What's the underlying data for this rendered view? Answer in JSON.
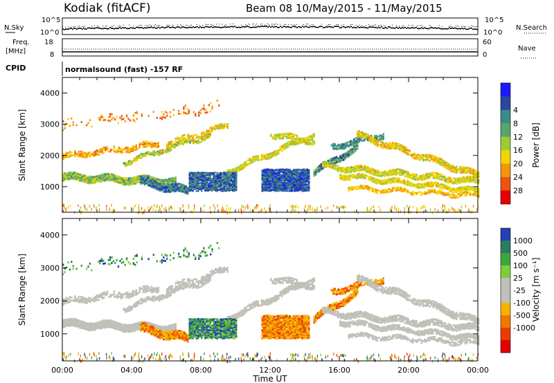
{
  "header": {
    "station": "Kodiak (fitACF)",
    "beam_info": "Beam 08  10/May/2015 - 11/May/2015"
  },
  "nsky_panel": {
    "left_label": "N.Sky",
    "right_label": "N.Search",
    "ytick_top": "10^5",
    "ytick_bottom": "10^0",
    "right_ytick_top": "10^5",
    "right_ytick_bottom": "10^0"
  },
  "freq_panel": {
    "left_label_line1": "Freq.",
    "left_label_line2": "[MHz]",
    "right_label": "Nave",
    "left_tick_top": "18",
    "left_tick_bottom": "8",
    "right_tick_top": "60",
    "right_tick_bottom": "0"
  },
  "cpid_panel": {
    "label": "CPID",
    "mode_text": "normalsound (fast) -157 RF"
  },
  "chart_data": [
    {
      "type": "heatmap",
      "name": "power-panel",
      "ylabel": "Slant Range [km]",
      "ylim": [
        180,
        4500
      ],
      "yticks": [
        1000,
        2000,
        3000,
        4000
      ],
      "colorbar_label": "Power [dB]",
      "colorbar_ticks": [
        "4",
        "8",
        "12",
        "16",
        "20",
        "24",
        "28"
      ],
      "colors": [
        "#1a1aff",
        "#27489c",
        "#3c8a88",
        "#58a46c",
        "#9ccc3c",
        "#f4d400",
        "#f49410",
        "#ee5410",
        "#e80000"
      ]
    },
    {
      "type": "heatmap",
      "name": "velocity-panel",
      "ylabel": "Slant Range [km]",
      "ylim": [
        180,
        4500
      ],
      "yticks": [
        1000,
        2000,
        3000,
        4000
      ],
      "colorbar_label": "Velocity [m s⁻¹]",
      "colorbar_ticks": [
        "1000",
        "500",
        "100",
        "25",
        "-25",
        "-100",
        "-500",
        "-1000"
      ],
      "colors": [
        "#2440b4",
        "#2a7c60",
        "#3fa63c",
        "#7ece3c",
        "#c0c0b8",
        "#c0c0b8",
        "#f6b400",
        "#f07800",
        "#ea3c00",
        "#e00000"
      ],
      "ground_scatter_color": "#c0c0b8"
    }
  ],
  "xaxis": {
    "ticks": [
      "00:00",
      "04:00",
      "08:00",
      "12:00",
      "16:00",
      "20:00",
      "00:00"
    ],
    "xlabel": "Time UT"
  }
}
